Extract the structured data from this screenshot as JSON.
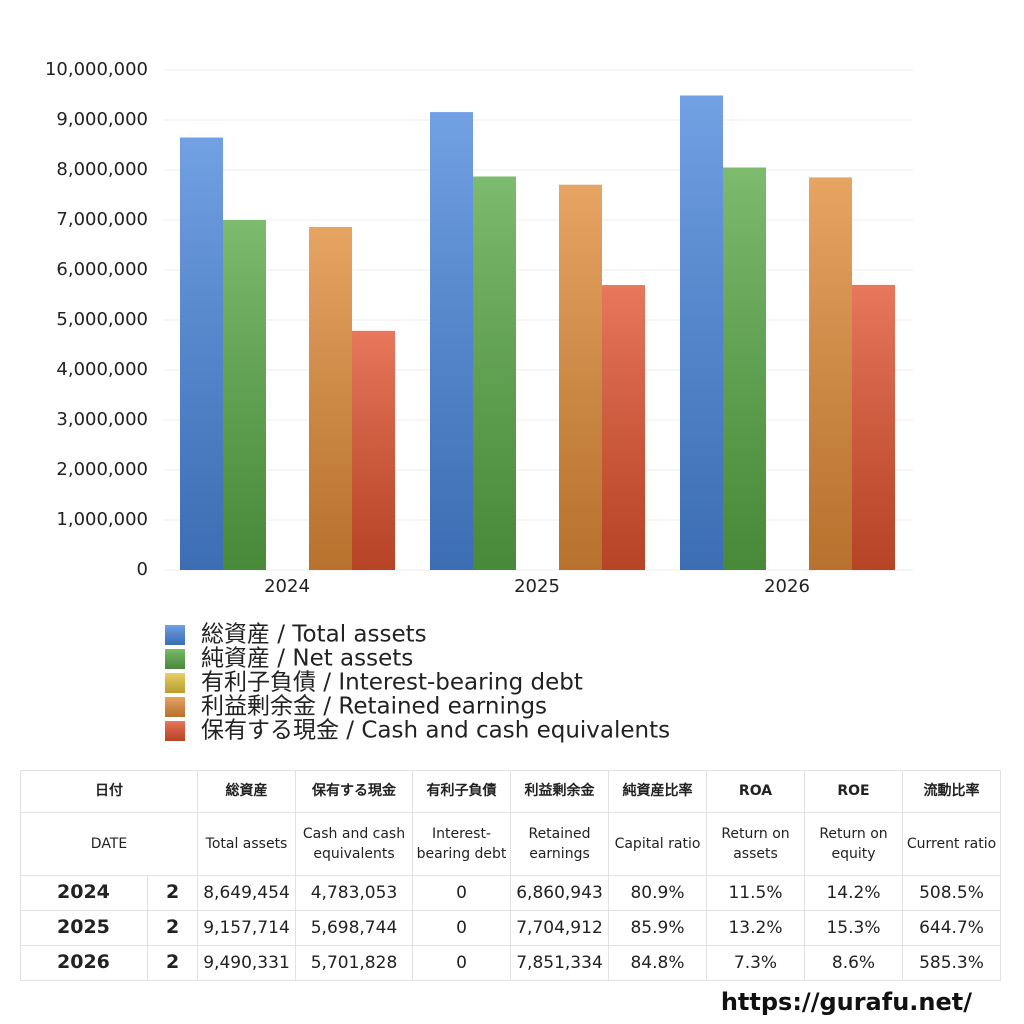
{
  "chart_data": {
    "type": "bar",
    "categories": [
      "2024",
      "2025",
      "2026"
    ],
    "series": [
      {
        "name": "総資産 / Total assets",
        "color": "#4a86dc",
        "values": [
          8649454,
          9157714,
          9490331
        ]
      },
      {
        "name": "純資産 / Net assets",
        "color": "#58a846",
        "values": [
          7000000,
          7870000,
          8050000
        ]
      },
      {
        "name": "有利子負債 / Interest-bearing debt",
        "color": "#e3c23a",
        "values": [
          0,
          0,
          0
        ]
      },
      {
        "name": "利益剰余金 / Retained earnings",
        "color": "#e08b38",
        "values": [
          6860943,
          7704912,
          7851334
        ]
      },
      {
        "name": "保有する現金 /  Cash and cash equivalents",
        "color": "#e0522e",
        "values": [
          4783053,
          5698744,
          5701828
        ]
      }
    ],
    "ylim": [
      0,
      10000000
    ],
    "yticks": [
      0,
      {
        "value": 1000000,
        "label": "1,000,000"
      },
      {
        "value": 2000000,
        "label": "2,000,000"
      },
      {
        "value": 3000000,
        "label": "3,000,000"
      },
      {
        "value": 4000000,
        "label": "4,000,000"
      },
      {
        "value": 5000000,
        "label": "5,000,000"
      },
      {
        "value": 6000000,
        "label": "6,000,000"
      },
      {
        "value": 7000000,
        "label": "7,000,000"
      },
      {
        "value": 8000000,
        "label": "8,000,000"
      },
      {
        "value": 9000000,
        "label": "9,000,000"
      },
      {
        "value": 10000000,
        "label": "10,000,000"
      }
    ],
    "grid": true,
    "legend": "bottom"
  },
  "table": {
    "header_ja": [
      "日付",
      "総資産",
      "保有する現金",
      "有利子負債",
      "利益剰余金",
      "純資産比率",
      "ROA",
      "ROE",
      "流動比率"
    ],
    "header_en": [
      "DATE",
      "Total assets",
      "Cash and cash equivalents",
      "Interest-bearing debt",
      "Retained earnings",
      "Capital ratio",
      "Return on assets",
      "Return on equity",
      "Current ratio"
    ],
    "rows": [
      [
        "2024",
        "2",
        "8,649,454",
        "4,783,053",
        "0",
        "6,860,943",
        "80.9%",
        "11.5%",
        "14.2%",
        "508.5%"
      ],
      [
        "2025",
        "2",
        "9,157,714",
        "5,698,744",
        "0",
        "7,704,912",
        "85.9%",
        "13.2%",
        "15.3%",
        "644.7%"
      ],
      [
        "2026",
        "2",
        "9,490,331",
        "5,701,828",
        "0",
        "7,851,334",
        "84.8%",
        "7.3%",
        "8.6%",
        "585.3%"
      ]
    ]
  },
  "footer": {
    "url": "https://gurafu.net/"
  }
}
